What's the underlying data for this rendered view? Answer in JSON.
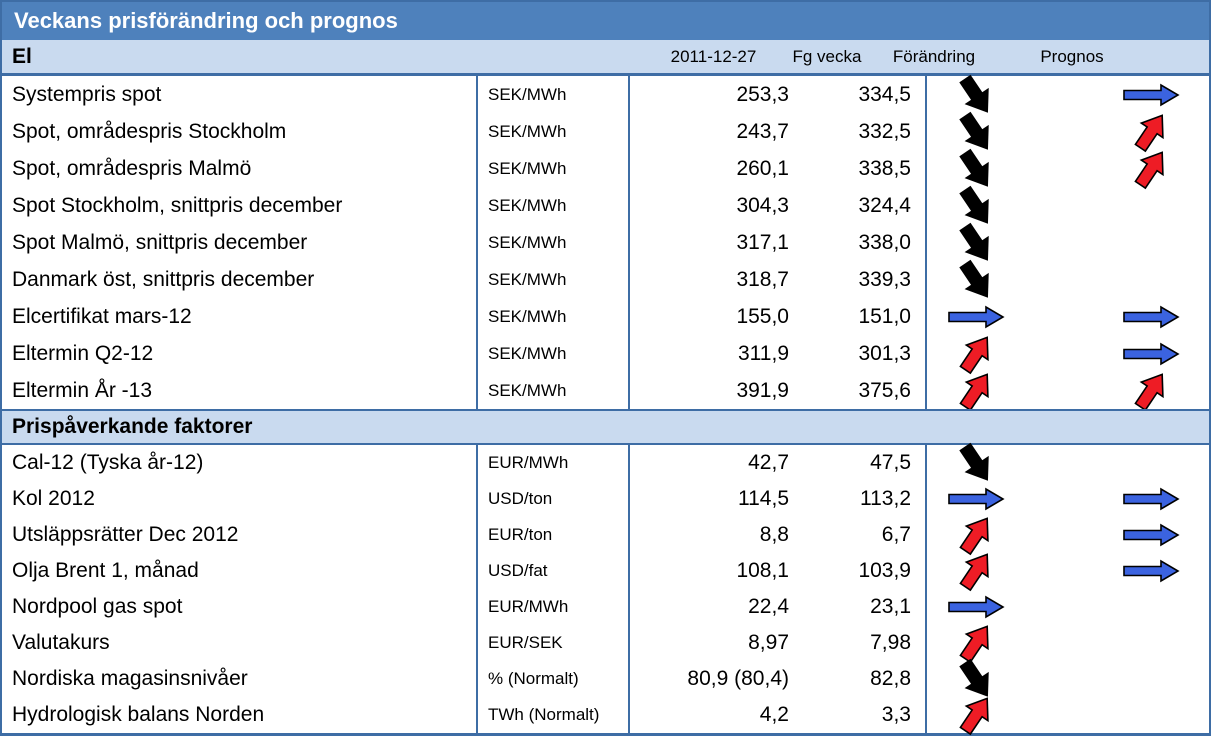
{
  "title": "Veckans prisförändring och prognos",
  "columns": {
    "date": "2011-12-27",
    "prev": "Fg vecka",
    "change": "Förändring",
    "forecast": "Prognos"
  },
  "sections": [
    {
      "label": "El",
      "rows": [
        {
          "name": "Systempris spot",
          "unit": "SEK/MWh",
          "value": "253,3",
          "prev": "334,5",
          "change": "down",
          "forecast": "right"
        },
        {
          "name": "Spot, områdespris Stockholm",
          "unit": "SEK/MWh",
          "value": "243,7",
          "prev": "332,5",
          "change": "down",
          "forecast": "up"
        },
        {
          "name": "Spot, områdespris Malmö",
          "unit": "SEK/MWh",
          "value": "260,1",
          "prev": "338,5",
          "change": "down",
          "forecast": "up"
        },
        {
          "name": "Spot Stockholm, snittpris december",
          "unit": "SEK/MWh",
          "value": "304,3",
          "prev": "324,4",
          "change": "down",
          "forecast": "none"
        },
        {
          "name": "Spot Malmö, snittpris december",
          "unit": "SEK/MWh",
          "value": "317,1",
          "prev": "338,0",
          "change": "down",
          "forecast": "none"
        },
        {
          "name": "Danmark öst, snittpris december",
          "unit": "SEK/MWh",
          "value": "318,7",
          "prev": "339,3",
          "change": "down",
          "forecast": "none"
        },
        {
          "name": "Elcertifikat mars-12",
          "unit": "SEK/MWh",
          "value": "155,0",
          "prev": "151,0",
          "change": "right",
          "forecast": "right"
        },
        {
          "name": "Eltermin Q2-12",
          "unit": "SEK/MWh",
          "value": "311,9",
          "prev": "301,3",
          "change": "up",
          "forecast": "right"
        },
        {
          "name": "Eltermin År -13",
          "unit": "SEK/MWh",
          "value": "391,9",
          "prev": "375,6",
          "change": "up",
          "forecast": "up"
        }
      ]
    },
    {
      "label": "Prispåverkande faktorer",
      "rows": [
        {
          "name": "Cal-12 (Tyska år-12)",
          "unit": "EUR/MWh",
          "value": "42,7",
          "prev": "47,5",
          "change": "down",
          "forecast": "none"
        },
        {
          "name": "Kol 2012",
          "unit": "USD/ton",
          "value": "114,5",
          "prev": "113,2",
          "change": "right",
          "forecast": "right"
        },
        {
          "name": "Utsläppsrätter Dec 2012",
          "unit": "EUR/ton",
          "value": "8,8",
          "prev": "6,7",
          "change": "up",
          "forecast": "right"
        },
        {
          "name": "Olja Brent 1, månad",
          "unit": "USD/fat",
          "value": "108,1",
          "prev": "103,9",
          "change": "up",
          "forecast": "right"
        },
        {
          "name": "Nordpool gas spot",
          "unit": "EUR/MWh",
          "value": "22,4",
          "prev": "23,1",
          "change": "right",
          "forecast": "none"
        },
        {
          "name": "Valutakurs",
          "unit": "EUR/SEK",
          "value": "8,97",
          "prev": "7,98",
          "change": "up",
          "forecast": "none"
        },
        {
          "name": "Nordiska magasinsnivåer",
          "unit": "% (Normalt)",
          "value": "80,9 (80,4)",
          "prev": "82,8",
          "change": "down",
          "forecast": "none"
        },
        {
          "name": "Hydrologisk balans Norden",
          "unit": "TWh (Normalt)",
          "value": "4,2",
          "prev": "3,3",
          "change": "up",
          "forecast": "none"
        }
      ]
    }
  ],
  "icons": {
    "down": "down-right-arrow-icon",
    "up": "up-right-arrow-icon",
    "right": "right-arrow-icon"
  },
  "colors": {
    "header_blue": "#4E81BC",
    "section_light_blue": "#C9DAEF",
    "line_blue": "#3E6DA5",
    "arrow_red": "#EE1C25",
    "arrow_blue": "#3B63E0",
    "arrow_black": "#000000"
  }
}
